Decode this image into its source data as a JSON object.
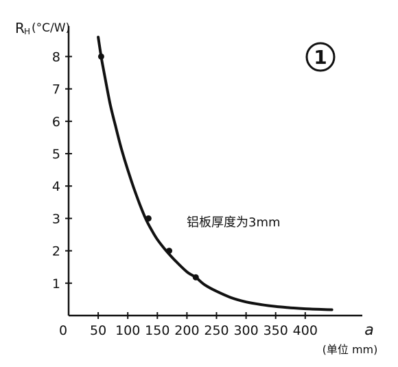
{
  "chart_data": {
    "type": "line",
    "title": "",
    "panel_label": "1",
    "ylabel": "R",
    "ylabel_sub": "H",
    "yunit": "(°C/W)",
    "xlabel": "a",
    "xunit": "(单位 mm)",
    "annotation": "铝板厚度为3mm",
    "xlim": [
      0,
      450
    ],
    "ylim": [
      0,
      8.9
    ],
    "x_ticks": [
      50,
      100,
      150,
      200,
      250,
      300,
      350,
      400
    ],
    "x_tick_labels": [
      "50",
      "100",
      "150",
      "200",
      "250",
      "300",
      "350",
      "400"
    ],
    "x_origin_label": "0",
    "y_ticks": [
      1,
      2,
      3,
      4,
      5,
      6,
      7,
      8
    ],
    "y_tick_labels": [
      "1",
      "2",
      "3",
      "4",
      "5",
      "6",
      "7",
      "8"
    ],
    "grid": false,
    "series": [
      {
        "values_x": [
          50,
          55,
          60,
          70,
          80,
          90,
          100,
          110,
          120,
          130,
          140,
          150,
          165,
          180,
          200,
          215,
          230,
          250,
          275,
          300,
          325,
          350,
          375,
          400,
          445
        ],
        "values_y": [
          8.6,
          8.0,
          7.5,
          6.55,
          5.8,
          5.1,
          4.5,
          3.95,
          3.45,
          3.0,
          2.65,
          2.35,
          2.0,
          1.7,
          1.35,
          1.18,
          0.95,
          0.75,
          0.55,
          0.42,
          0.34,
          0.28,
          0.24,
          0.21,
          0.18
        ]
      }
    ],
    "markers": {
      "x": [
        55,
        135,
        170,
        215
      ],
      "y": [
        8.0,
        3.0,
        2.0,
        1.18
      ]
    }
  }
}
